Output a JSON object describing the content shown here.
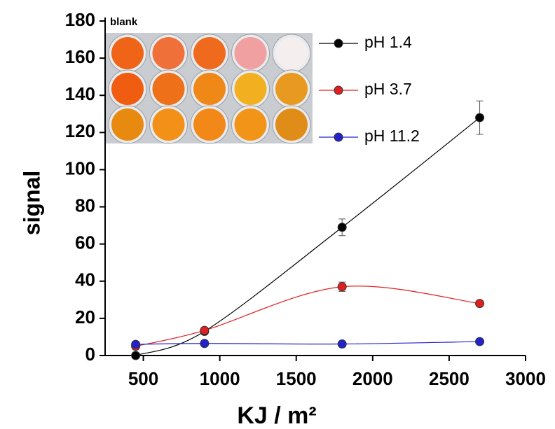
{
  "chart_data": {
    "type": "line",
    "xlabel": "KJ / m²",
    "ylabel": "signal",
    "annotation": "blank",
    "xlim": [
      250,
      3000
    ],
    "xticks": [
      500,
      1000,
      1500,
      2000,
      2500,
      3000
    ],
    "ylim": [
      0,
      180
    ],
    "yticks": [
      0,
      20,
      40,
      60,
      80,
      100,
      120,
      140,
      160,
      180
    ],
    "x": [
      450,
      900,
      1800,
      2700
    ],
    "series": [
      {
        "name": "pH 1.4",
        "color": "#000000",
        "values": [
          0,
          13,
          69,
          128
        ],
        "errors": [
          0,
          1,
          4.5,
          9
        ]
      },
      {
        "name": "pH 3.7",
        "color": "#e02020",
        "values": [
          5,
          13.5,
          37,
          28
        ],
        "errors": [
          0,
          1,
          2.5,
          1
        ]
      },
      {
        "name": "pH 11.2",
        "color": "#2222cc",
        "values": [
          6,
          6.5,
          6.2,
          7.5
        ],
        "errors": [
          0,
          0,
          0,
          0
        ]
      }
    ]
  }
}
